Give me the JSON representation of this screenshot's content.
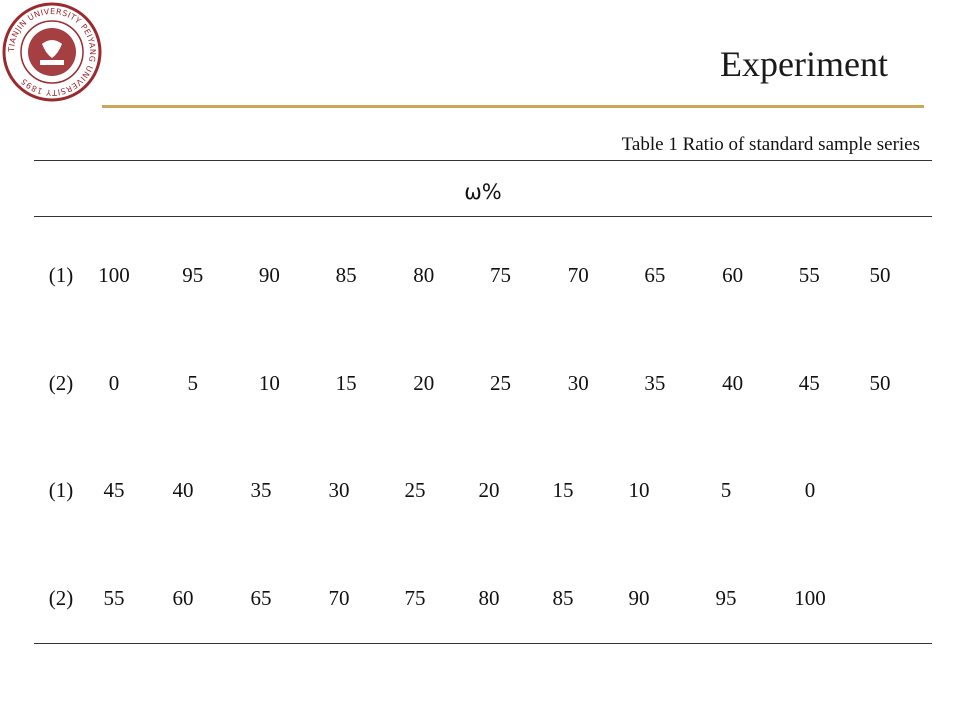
{
  "slide": {
    "title": "Experiment",
    "caption": "Table 1 Ratio of standard sample series"
  },
  "logo": {
    "icon": "university-seal-icon",
    "text": "TIANJIN UNIVERSITY PEIYANG UNIVERSITY 1895",
    "color": "#9b2a2e"
  },
  "accent_color": "#c9a85c",
  "table": {
    "header": "ω%",
    "rows": [
      {
        "label": "(1)",
        "values": [
          "100",
          "95",
          "90",
          "85",
          "80",
          "75",
          "70",
          "65",
          "60",
          "55",
          "50"
        ]
      },
      {
        "label": "(2)",
        "values": [
          "0",
          "5",
          "10",
          "15",
          "20",
          "25",
          "30",
          "35",
          "40",
          "45",
          "50"
        ]
      },
      {
        "label": "(1)",
        "values": [
          "45",
          "40",
          "35",
          "30",
          "25",
          "20",
          "15",
          "10",
          "5",
          "0"
        ]
      },
      {
        "label": "(2)",
        "values": [
          "55",
          "60",
          "65",
          "70",
          "75",
          "80",
          "85",
          "90",
          "95",
          "100"
        ]
      }
    ]
  }
}
